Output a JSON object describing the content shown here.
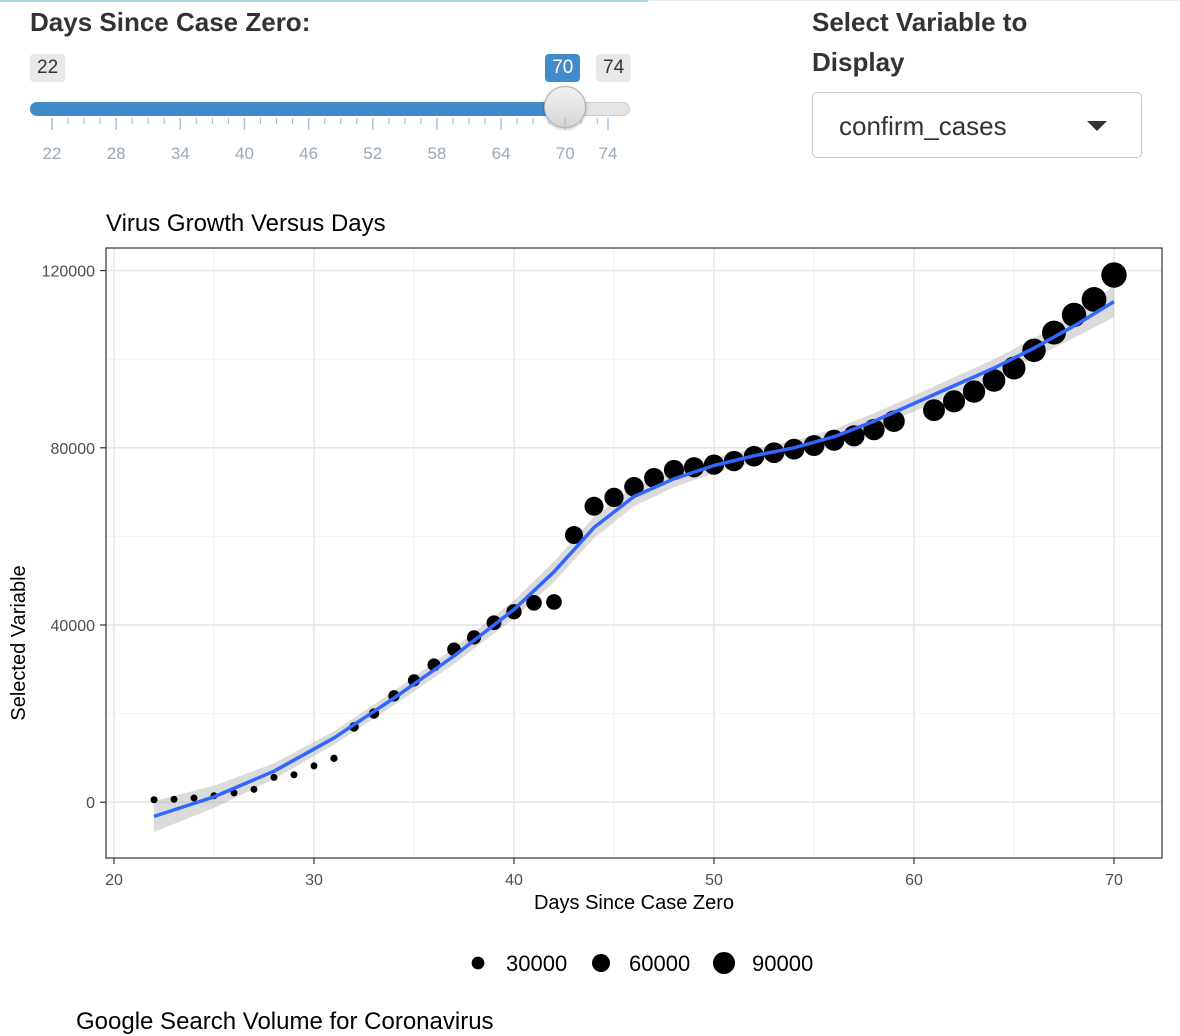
{
  "controls": {
    "days_label": "Days Since Case Zero:",
    "slider": {
      "min": 22,
      "max": 74,
      "value": 70,
      "ticks": [
        22,
        28,
        34,
        40,
        46,
        52,
        58,
        64,
        70,
        74
      ]
    },
    "variable_label": "Select Variable to Display",
    "variable_selected": "confirm_cases"
  },
  "colors": {
    "accent": "#428bca",
    "fit_line": "#3366ff",
    "points": "#000000"
  },
  "chart_data": {
    "type": "scatter",
    "title": "Virus Growth Versus Days",
    "xlabel": "Days Since Case Zero",
    "ylabel": "Selected Variable",
    "xlim": [
      19.6,
      72.4
    ],
    "ylim": [
      -12600,
      125100
    ],
    "x_ticks": [
      20,
      30,
      40,
      50,
      60,
      70
    ],
    "y_ticks": [
      0,
      40000,
      80000,
      120000
    ],
    "x_tick_labels": [
      "20",
      "30",
      "40",
      "50",
      "60",
      "70"
    ],
    "y_tick_labels": [
      "0",
      "40000",
      "80000",
      "120000"
    ],
    "size_legend": {
      "labels": [
        "30000",
        "60000",
        "90000"
      ],
      "values": [
        30000,
        60000,
        90000
      ],
      "placement": "bottom"
    },
    "grid": true,
    "smooth": true,
    "points": [
      {
        "x": 22,
        "y": 550
      },
      {
        "x": 23,
        "y": 650
      },
      {
        "x": 24,
        "y": 950
      },
      {
        "x": 25,
        "y": 1450
      },
      {
        "x": 26,
        "y": 2100
      },
      {
        "x": 27,
        "y": 2900
      },
      {
        "x": 28,
        "y": 5600
      },
      {
        "x": 29,
        "y": 6200
      },
      {
        "x": 30,
        "y": 8200
      },
      {
        "x": 31,
        "y": 9900
      },
      {
        "x": 32,
        "y": 17000
      },
      {
        "x": 33,
        "y": 20000
      },
      {
        "x": 34,
        "y": 24000
      },
      {
        "x": 35,
        "y": 27500
      },
      {
        "x": 36,
        "y": 31000
      },
      {
        "x": 37,
        "y": 34500
      },
      {
        "x": 38,
        "y": 37200
      },
      {
        "x": 39,
        "y": 40500
      },
      {
        "x": 40,
        "y": 43000
      },
      {
        "x": 41,
        "y": 45000
      },
      {
        "x": 42,
        "y": 45200
      },
      {
        "x": 43,
        "y": 60300
      },
      {
        "x": 44,
        "y": 66800
      },
      {
        "x": 45,
        "y": 68800
      },
      {
        "x": 46,
        "y": 71200
      },
      {
        "x": 47,
        "y": 73200
      },
      {
        "x": 48,
        "y": 75000
      },
      {
        "x": 49,
        "y": 75600
      },
      {
        "x": 50,
        "y": 76200
      },
      {
        "x": 51,
        "y": 77000
      },
      {
        "x": 52,
        "y": 78100
      },
      {
        "x": 53,
        "y": 78900
      },
      {
        "x": 54,
        "y": 79700
      },
      {
        "x": 55,
        "y": 80500
      },
      {
        "x": 56,
        "y": 81700
      },
      {
        "x": 57,
        "y": 82700
      },
      {
        "x": 58,
        "y": 84100
      },
      {
        "x": 59,
        "y": 86000
      },
      {
        "x": 61,
        "y": 88500
      },
      {
        "x": 62,
        "y": 90500
      },
      {
        "x": 63,
        "y": 92700
      },
      {
        "x": 64,
        "y": 95200
      },
      {
        "x": 65,
        "y": 98000
      },
      {
        "x": 66,
        "y": 102000
      },
      {
        "x": 67,
        "y": 106000
      },
      {
        "x": 68,
        "y": 110000
      },
      {
        "x": 69,
        "y": 113500
      },
      {
        "x": 70,
        "y": 119000
      }
    ],
    "fit": [
      {
        "x": 22,
        "y": -3200
      },
      {
        "x": 25,
        "y": 1200
      },
      {
        "x": 28,
        "y": 7000
      },
      {
        "x": 31,
        "y": 14500
      },
      {
        "x": 34,
        "y": 23500
      },
      {
        "x": 37,
        "y": 33000
      },
      {
        "x": 40,
        "y": 43500
      },
      {
        "x": 42,
        "y": 52000
      },
      {
        "x": 44,
        "y": 62000
      },
      {
        "x": 46,
        "y": 69000
      },
      {
        "x": 48,
        "y": 73000
      },
      {
        "x": 50,
        "y": 76000
      },
      {
        "x": 52,
        "y": 78200
      },
      {
        "x": 54,
        "y": 80000
      },
      {
        "x": 56,
        "y": 82500
      },
      {
        "x": 58,
        "y": 86000
      },
      {
        "x": 60,
        "y": 90000
      },
      {
        "x": 62,
        "y": 94000
      },
      {
        "x": 64,
        "y": 98000
      },
      {
        "x": 66,
        "y": 102500
      },
      {
        "x": 68,
        "y": 107500
      },
      {
        "x": 70,
        "y": 113000
      }
    ],
    "fit_se": [
      3500,
      2500,
      1800,
      1500,
      1600,
      1800,
      2000,
      2300,
      2400,
      2200,
      1900,
      1700,
      1600,
      1600,
      1700,
      1800,
      1800,
      1900,
      2000,
      2200,
      2700,
      3500
    ]
  },
  "next_section": {
    "title": "Google Search Volume for Coronavirus"
  }
}
